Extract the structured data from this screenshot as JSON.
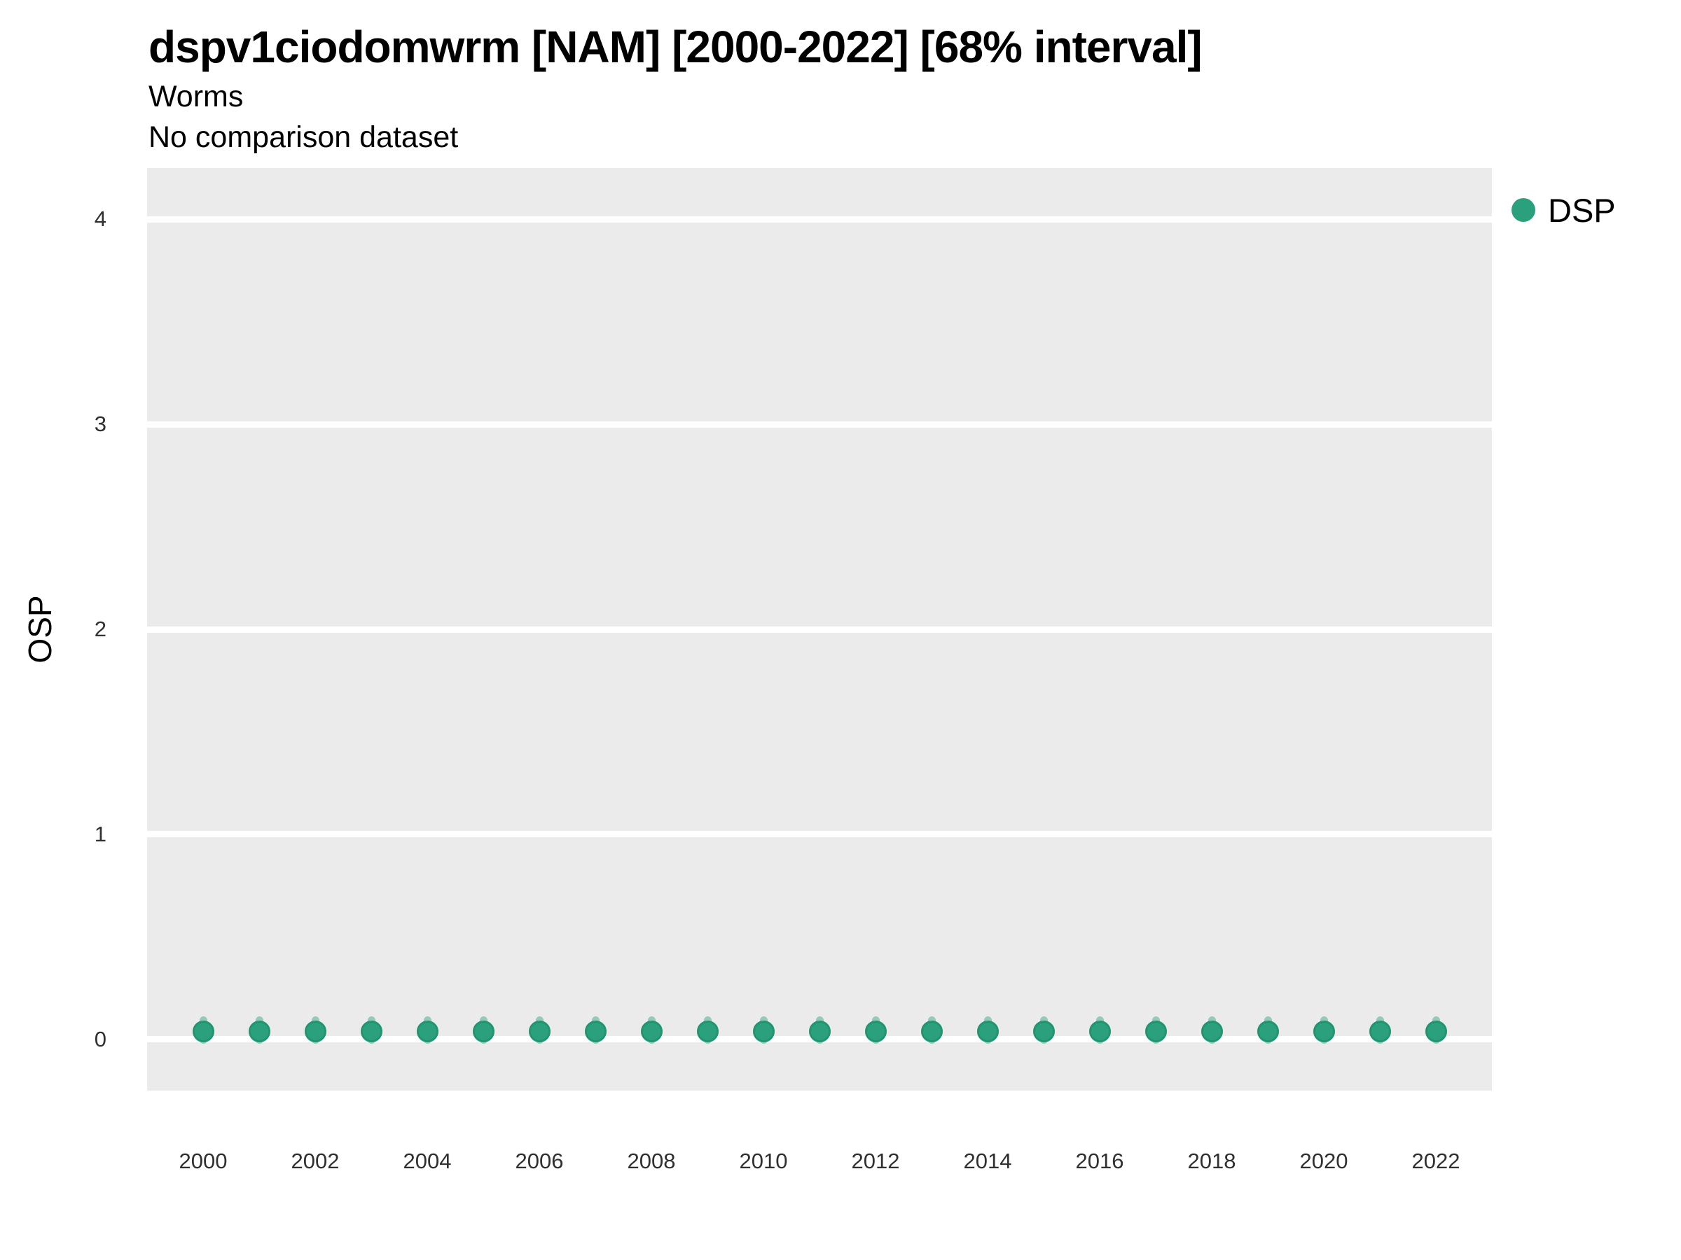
{
  "header": {
    "title": "dspv1ciodomwrm [NAM] [2000-2022] [68% interval]",
    "subtitle": "Worms",
    "caption": "No comparison dataset"
  },
  "legend": {
    "position": "right",
    "items": [
      {
        "label": "DSP",
        "marker": "circle",
        "color": "#2aa17c"
      }
    ]
  },
  "colors": {
    "panel_background": "#ebebeb",
    "gridline": "#ffffff",
    "point_fill": "#2aa17c",
    "point_stroke": "#22946f",
    "interval_fill": "rgba(42,161,124,0.45)",
    "title_text": "#000000",
    "tick_text": "#303030"
  },
  "chart_data": {
    "type": "scatter",
    "title": "dspv1ciodomwrm [NAM] [2000-2022] [68% interval]",
    "subtitle": "Worms",
    "note": "No comparison dataset",
    "xlabel": "",
    "ylabel": "OSP",
    "interval_level": "68%",
    "x": [
      2000,
      2001,
      2002,
      2003,
      2004,
      2005,
      2006,
      2007,
      2008,
      2009,
      2010,
      2011,
      2012,
      2013,
      2014,
      2015,
      2016,
      2017,
      2018,
      2019,
      2020,
      2021,
      2022
    ],
    "series": [
      {
        "name": "DSP",
        "values": [
          0.04,
          0.04,
          0.04,
          0.04,
          0.04,
          0.04,
          0.04,
          0.04,
          0.04,
          0.04,
          0.04,
          0.04,
          0.04,
          0.04,
          0.04,
          0.04,
          0.04,
          0.04,
          0.04,
          0.04,
          0.04,
          0.04,
          0.04
        ],
        "interval_upper": [
          0.09,
          0.09,
          0.09,
          0.09,
          0.09,
          0.09,
          0.09,
          0.09,
          0.09,
          0.09,
          0.09,
          0.09,
          0.09,
          0.09,
          0.09,
          0.09,
          0.09,
          0.09,
          0.09,
          0.09,
          0.09,
          0.09,
          0.09
        ],
        "interval_lower": [
          0.0,
          0.0,
          0.0,
          0.0,
          0.0,
          0.0,
          0.0,
          0.0,
          0.0,
          0.0,
          0.0,
          0.0,
          0.0,
          0.0,
          0.0,
          0.0,
          0.0,
          0.0,
          0.0,
          0.0,
          0.0,
          0.0,
          0.0
        ]
      }
    ],
    "ylim": [
      -0.25,
      4.25
    ],
    "yticks": [
      0,
      1,
      2,
      3,
      4
    ],
    "xticks": [
      2000,
      2002,
      2004,
      2006,
      2008,
      2010,
      2012,
      2014,
      2016,
      2018,
      2020,
      2022
    ],
    "xrange": [
      2000,
      2022
    ],
    "grid": "horizontal major gridlines only, white on gray panel",
    "legend_position": "right"
  }
}
